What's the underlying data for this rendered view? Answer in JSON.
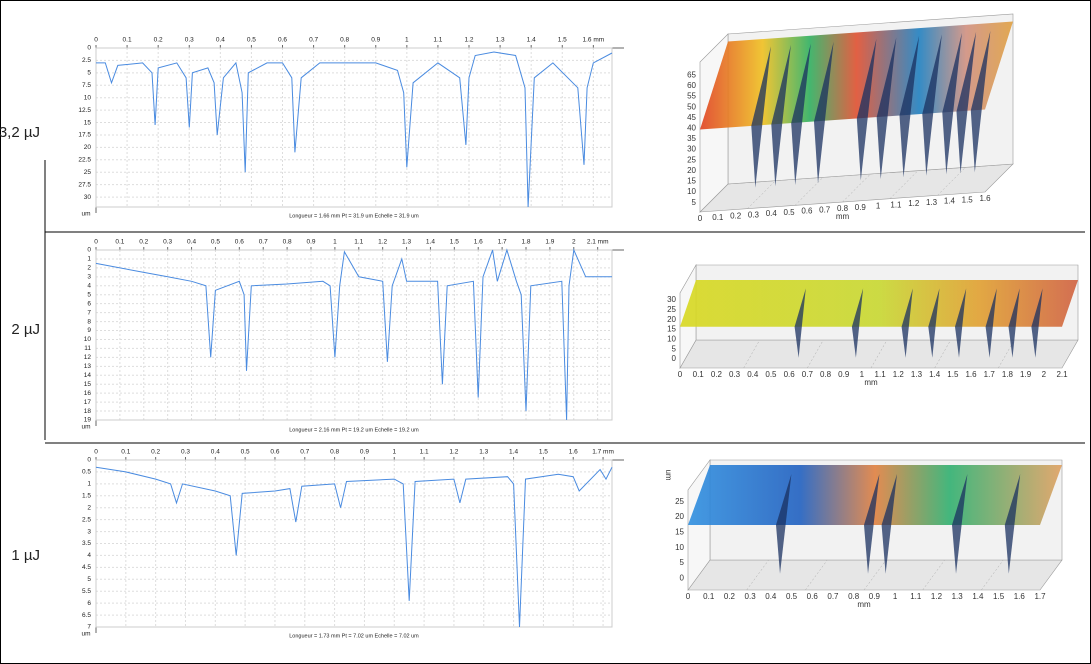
{
  "labels": [
    "3,2 µJ",
    "2 µJ",
    "1 µJ"
  ],
  "chart_data": [
    {
      "type": "line",
      "caption": "Longueur = 1.66 mm  Pt = 31.9 um  Echelle = 31.9 um",
      "y_label": "um",
      "color": "#4a8be0",
      "grid": true,
      "y_inverted": true,
      "xlim": [
        0,
        1.66
      ],
      "ylim": [
        0,
        32
      ],
      "xticks": [
        0,
        0.1,
        0.2,
        0.3,
        0.4,
        0.5,
        0.6,
        0.7,
        0.8,
        0.9,
        1,
        1.1,
        1.2,
        1.3,
        1.4,
        1.5,
        {
          "value": 1.6,
          "label": "1.6 mm"
        }
      ],
      "yticks": [
        0,
        2.5,
        5,
        7.5,
        10,
        12.5,
        15,
        17.5,
        20,
        22.5,
        25,
        27.5,
        30
      ],
      "x": [
        0,
        0.03,
        0.05,
        0.07,
        0.15,
        0.18,
        0.19,
        0.2,
        0.26,
        0.29,
        0.3,
        0.31,
        0.36,
        0.38,
        0.39,
        0.41,
        0.45,
        0.47,
        0.48,
        0.49,
        0.55,
        0.6,
        0.63,
        0.64,
        0.66,
        0.72,
        0.9,
        0.97,
        0.99,
        1.0,
        1.02,
        1.1,
        1.17,
        1.19,
        1.2,
        1.22,
        1.28,
        1.35,
        1.38,
        1.39,
        1.41,
        1.47,
        1.55,
        1.57,
        1.58,
        1.6,
        1.66
      ],
      "values": [
        3,
        3,
        7,
        3.5,
        3,
        5,
        15.5,
        4,
        3,
        6,
        16,
        5,
        4,
        7,
        17.5,
        6,
        3,
        9,
        25,
        5,
        3,
        3,
        6,
        21,
        6,
        3,
        3,
        4.5,
        9,
        24,
        7,
        3,
        6,
        19.5,
        6,
        1.5,
        0.8,
        1.5,
        8,
        32,
        6,
        3,
        8,
        23.5,
        8,
        3,
        1
      ]
    },
    {
      "type": "line",
      "caption": "Longueur = 2.16 mm  Pt = 19.2 um  Echelle = 19.2 um",
      "y_label": "um",
      "color": "#4a8be0",
      "grid": true,
      "y_inverted": true,
      "xlim": [
        0,
        2.16
      ],
      "ylim": [
        0,
        19
      ],
      "xticks": [
        0,
        0.1,
        0.2,
        0.3,
        0.4,
        0.5,
        0.6,
        0.7,
        0.8,
        0.9,
        1,
        1.1,
        1.2,
        1.3,
        1.4,
        1.5,
        1.6,
        1.7,
        1.8,
        1.9,
        2,
        {
          "value": 2.1,
          "label": "2.1 mm"
        }
      ],
      "yticks": [
        0,
        1,
        2,
        3,
        4,
        5,
        6,
        7,
        8,
        9,
        10,
        11,
        12,
        13,
        14,
        15,
        16,
        17,
        18,
        19
      ],
      "x": [
        0,
        0.1,
        0.2,
        0.3,
        0.4,
        0.46,
        0.48,
        0.5,
        0.6,
        0.62,
        0.63,
        0.65,
        0.8,
        0.95,
        0.98,
        1.0,
        1.02,
        1.04,
        1.1,
        1.2,
        1.22,
        1.24,
        1.28,
        1.3,
        1.43,
        1.45,
        1.47,
        1.58,
        1.6,
        1.62,
        1.66,
        1.68,
        1.72,
        1.76,
        1.78,
        1.8,
        1.82,
        1.95,
        1.97,
        1.98,
        2.0,
        2.05,
        2.16
      ],
      "values": [
        1.5,
        2,
        2.5,
        3,
        3.5,
        4,
        12,
        4.5,
        3.5,
        5,
        13.5,
        4,
        3.8,
        3.5,
        4,
        12,
        4,
        0.2,
        3,
        3.5,
        12.5,
        4,
        1,
        3.5,
        3.5,
        15,
        4,
        3.5,
        16.5,
        3,
        0,
        3.5,
        0,
        3.5,
        5,
        18,
        4,
        3.5,
        19,
        4,
        0,
        3,
        3
      ]
    },
    {
      "type": "line",
      "caption": "Longueur = 1.73 mm  Pt = 7.02 um  Echelle = 7.02 um",
      "y_label": "um",
      "color": "#4a8be0",
      "grid": true,
      "y_inverted": true,
      "xlim": [
        0,
        1.73
      ],
      "ylim": [
        0,
        7
      ],
      "xticks": [
        0,
        0.1,
        0.2,
        0.3,
        0.4,
        0.5,
        0.6,
        0.7,
        0.8,
        0.9,
        1,
        1.1,
        1.2,
        1.3,
        1.4,
        1.5,
        1.6,
        {
          "value": 1.7,
          "label": "1.7 mm"
        }
      ],
      "yticks": [
        0,
        0.5,
        1,
        1.5,
        2,
        2.5,
        3,
        3.5,
        4,
        4.5,
        5,
        5.5,
        6,
        6.5,
        7
      ],
      "x": [
        0,
        0.1,
        0.2,
        0.25,
        0.27,
        0.29,
        0.4,
        0.45,
        0.47,
        0.49,
        0.6,
        0.65,
        0.67,
        0.69,
        0.8,
        0.82,
        0.84,
        1.0,
        1.03,
        1.05,
        1.07,
        1.2,
        1.22,
        1.24,
        1.38,
        1.4,
        1.42,
        1.44,
        1.55,
        1.6,
        1.62,
        1.69,
        1.71,
        1.73
      ],
      "values": [
        0.3,
        0.5,
        0.8,
        1,
        1.8,
        1,
        1.3,
        1.5,
        4,
        1.4,
        1.3,
        1.2,
        2.6,
        1.1,
        1,
        2,
        0.9,
        0.8,
        1,
        5.9,
        0.9,
        0.8,
        1.8,
        0.8,
        0.7,
        1,
        7,
        0.8,
        0.6,
        0.7,
        1.3,
        0.4,
        0.8,
        0.3
      ]
    }
  ],
  "renders": [
    {
      "x_label": "mm",
      "z_ticks": [
        "5",
        "10",
        "15",
        "20",
        "25",
        "30",
        "35",
        "40",
        "45",
        "50",
        "55",
        "60",
        "65"
      ],
      "x_ticks": [
        "0",
        "0.1",
        "0.2",
        "0.3",
        "0.4",
        "0.5",
        "0.6",
        "0.7",
        "0.8",
        "0.9",
        "1",
        "1.1",
        "1.2",
        "1.3",
        "1.4",
        "1.5",
        "1.6"
      ]
    },
    {
      "x_label": "mm",
      "z_ticks": [
        "0",
        "5",
        "10",
        "15",
        "20",
        "25",
        "30"
      ],
      "x_ticks": [
        "0",
        "0.1",
        "0.2",
        "0.3",
        "0.4",
        "0.5",
        "0.6",
        "0.7",
        "0.8",
        "0.9",
        "1",
        "1.1",
        "1.2",
        "1.3",
        "1.4",
        "1.5",
        "1.6",
        "1.7",
        "1.8",
        "1.9",
        "2",
        "2.1"
      ]
    },
    {
      "x_label": "mm",
      "z_label": "um",
      "z_ticks": [
        "0",
        "5",
        "10",
        "15",
        "20",
        "25"
      ],
      "x_ticks": [
        "0",
        "0.1",
        "0.2",
        "0.3",
        "0.4",
        "0.5",
        "0.6",
        "0.7",
        "0.8",
        "0.9",
        "1",
        "1.1",
        "1.2",
        "1.3",
        "1.4",
        "1.5",
        "1.6",
        "1.7"
      ]
    }
  ]
}
